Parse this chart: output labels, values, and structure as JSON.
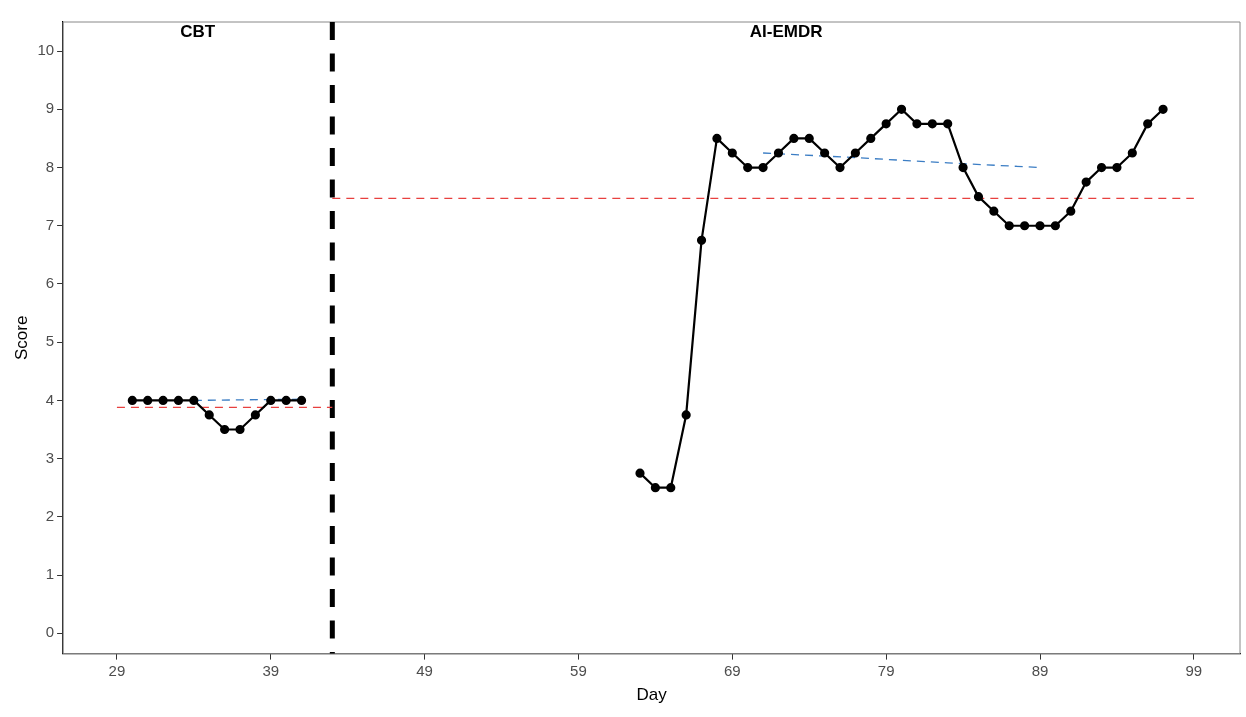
{
  "chart_data": {
    "type": "line",
    "xlabel": "Day",
    "ylabel": "Score",
    "xlim": [
      25.5,
      102
    ],
    "xticks": [
      29,
      39,
      49,
      59,
      69,
      79,
      89,
      99
    ],
    "ylim": [
      -0.35,
      10.5
    ],
    "yticks": [
      0,
      1,
      2,
      3,
      4,
      5,
      6,
      7,
      8,
      9,
      10
    ],
    "grid": false,
    "legend": false,
    "series": [
      {
        "color": "#000000",
        "marker": "circle",
        "line_style": "solid",
        "x": [
          30,
          31,
          32,
          33,
          34,
          35,
          36,
          37,
          38,
          39,
          40,
          41
        ],
        "values": [
          4,
          4,
          4,
          4,
          4,
          3.75,
          3.5,
          3.5,
          3.75,
          4,
          4,
          4
        ]
      },
      {
        "color": "#000000",
        "marker": "circle",
        "line_style": "solid",
        "x": [
          63,
          64,
          65,
          66,
          67,
          68,
          69,
          70,
          71,
          72,
          73,
          74,
          75,
          76,
          77,
          78,
          79,
          80,
          81,
          82,
          83,
          84,
          85,
          86,
          87,
          88,
          89,
          90,
          91,
          92,
          93,
          94,
          95,
          96,
          97
        ],
        "values": [
          2.75,
          2.5,
          2.5,
          3.75,
          6.75,
          8.5,
          8.25,
          8,
          8,
          8.25,
          8.5,
          8.5,
          8.25,
          8,
          8.25,
          8.5,
          8.75,
          9,
          8.75,
          8.75,
          8.75,
          8,
          7.5,
          7.25,
          7,
          7,
          7,
          7,
          7.25,
          7.75,
          8,
          8,
          8.25,
          8.75,
          9
        ]
      },
      {
        "color": "#e8403f",
        "marker": "none",
        "line_style": "dashed",
        "x": [
          29,
          43
        ],
        "values": [
          3.88,
          3.88
        ]
      },
      {
        "color": "#e8403f",
        "marker": "none",
        "line_style": "dashed",
        "x": [
          43,
          99
        ],
        "values": [
          7.47,
          7.47
        ]
      },
      {
        "color": "#3b7dc4",
        "marker": "none",
        "line_style": "dashed",
        "x": [
          34,
          41
        ],
        "values": [
          4,
          4.02
        ]
      },
      {
        "color": "#3b7dc4",
        "marker": "none",
        "line_style": "dashed",
        "x": [
          71,
          77,
          83,
          89
        ],
        "values": [
          8.25,
          8.17,
          8.08,
          8
        ]
      }
    ],
    "ref_lines": [
      {
        "axis": "x",
        "value": 43,
        "color": "#000000",
        "line_style": "dashed"
      }
    ],
    "annotations": [
      "CBT",
      "AI-EMDR"
    ]
  }
}
